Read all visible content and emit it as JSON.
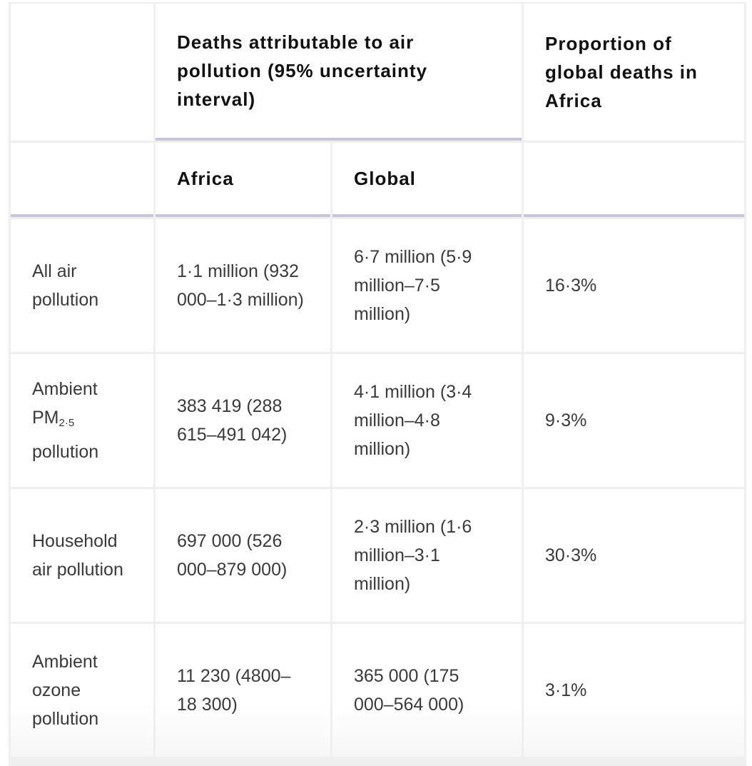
{
  "header": {
    "deaths_group": "Deaths attributable to air pollution (95% uncertainty interval)",
    "proportion": "Proportion of global deaths in Africa",
    "africa": "Africa",
    "global": "Global"
  },
  "rows": [
    {
      "label": "All air pollution",
      "africa": "1·1 million (932 000–1·3 million)",
      "global": "6·7 million (5·9 million–7·5 million)",
      "proportion": "16·3%"
    },
    {
      "label_pre": "Ambient PM",
      "label_sub": "2·5",
      "label_post": " pollution",
      "africa": "383 419 (288 615–491 042)",
      "global": "4·1 million (3·4 million–4·8 million)",
      "proportion": "9·3%"
    },
    {
      "label": "Household air pollution",
      "africa": "697 000 (526 000–879 000)",
      "global": "2·3 million (1·6 million–3·1 million)",
      "proportion": "30·3%"
    },
    {
      "label": "Ambient ozone pollution",
      "africa": "11 230 (4800–18 300)",
      "global": "365 000 (175 000–564 000)",
      "proportion": "3·1%"
    }
  ]
}
